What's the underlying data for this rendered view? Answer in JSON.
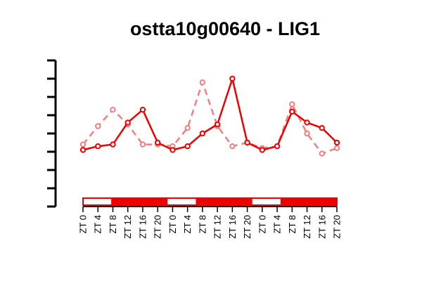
{
  "chart_data": {
    "type": "line",
    "title": "ostta10g00640 - LIG1",
    "xlabel": "",
    "ylabel": "",
    "categories": [
      "ZT 0",
      "ZT 4",
      "ZT 8",
      "ZT 12",
      "ZT 16",
      "ZT 20",
      "ZT 0",
      "ZT 4",
      "ZT 8",
      "ZT 12",
      "ZT 16",
      "ZT 20",
      "ZT 0",
      "ZT 4",
      "ZT 8",
      "ZT 12",
      "ZT 16",
      "ZT 20"
    ],
    "ylim": [
      0,
      8
    ],
    "y_ticks": [
      0,
      1,
      2,
      3,
      4,
      5,
      6,
      7,
      8
    ],
    "y_tick_labels_visible": false,
    "grid": false,
    "legend": "none",
    "series": [
      {
        "style": "solid",
        "color": "#ee0000",
        "values": [
          3.1,
          3.3,
          3.4,
          4.6,
          5.3,
          3.5,
          3.1,
          3.3,
          4.0,
          4.5,
          7.0,
          3.5,
          3.1,
          3.3,
          5.2,
          4.6,
          4.3,
          3.5
        ]
      },
      {
        "style": "dashed",
        "color": "#f08080",
        "values": [
          3.4,
          4.4,
          5.3,
          4.5,
          3.4,
          3.4,
          3.3,
          4.3,
          6.8,
          4.4,
          3.3,
          3.5,
          3.2,
          3.3,
          5.6,
          4.0,
          2.9,
          3.2
        ]
      }
    ],
    "light_dark_bar": {
      "colors": {
        "light": "#ffffff",
        "dark": "#ee0000"
      },
      "segments": [
        "light",
        "light",
        "dark",
        "dark",
        "dark",
        "dark",
        "light",
        "light",
        "dark",
        "dark",
        "dark",
        "dark",
        "light",
        "light",
        "dark",
        "dark",
        "dark",
        "dark"
      ]
    }
  }
}
